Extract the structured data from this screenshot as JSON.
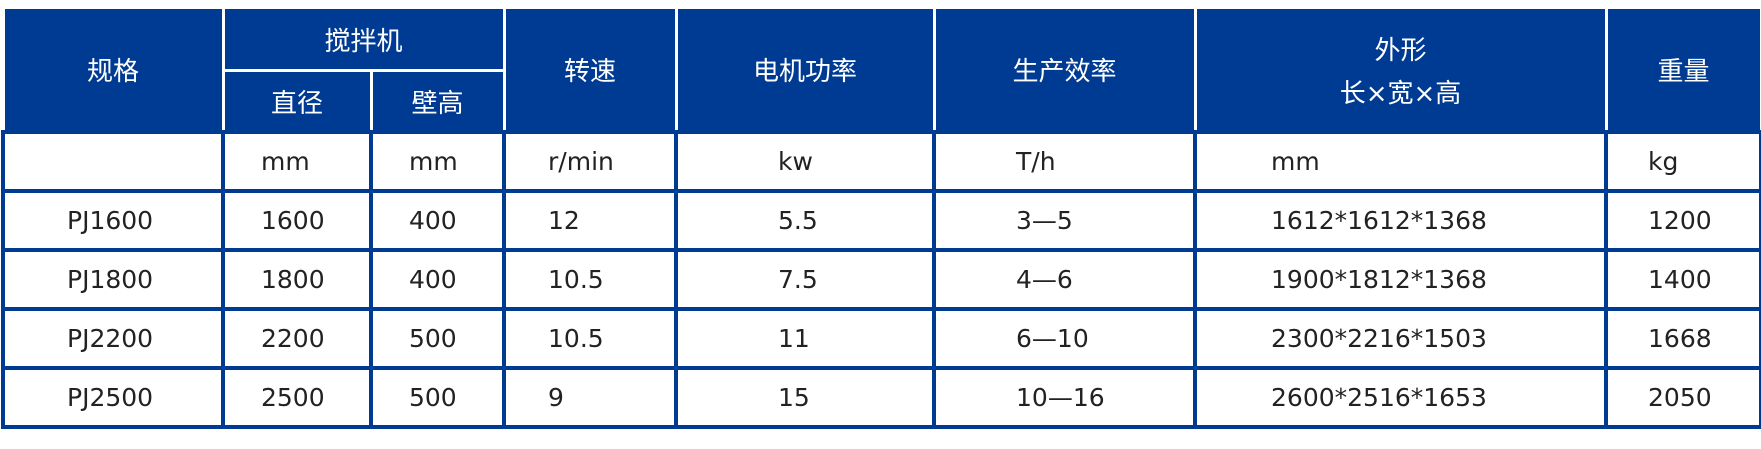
{
  "header": {
    "spec": "规格",
    "mixer": "搅拌机",
    "diameter": "直径",
    "wall_height": "壁高",
    "speed": "转速",
    "motor_power": "电机功率",
    "efficiency": "生产效率",
    "dimensions_line1": "外形",
    "dimensions_line2": "长×宽×高",
    "weight": "重量"
  },
  "units": [
    "",
    "mm",
    "mm",
    "r/min",
    "kw",
    "T/h",
    "mm",
    "kg"
  ],
  "rows": [
    [
      "PJ1600",
      "1600",
      "400",
      "12",
      "5.5",
      "3—5",
      "1612*1612*1368",
      "1200"
    ],
    [
      "PJ1800",
      "1800",
      "400",
      "10.5",
      "7.5",
      "4—6",
      "1900*1812*1368",
      "1400"
    ],
    [
      "PJ2200",
      "2200",
      "500",
      "10.5",
      "11",
      "6—10",
      "2300*2216*1503",
      "1668"
    ],
    [
      "PJ2500",
      "2500",
      "500",
      "9",
      "15",
      "10—16",
      "2600*2516*1653",
      "2050"
    ]
  ],
  "colors": {
    "header_bg": "#003b93",
    "border": "#003b93"
  }
}
